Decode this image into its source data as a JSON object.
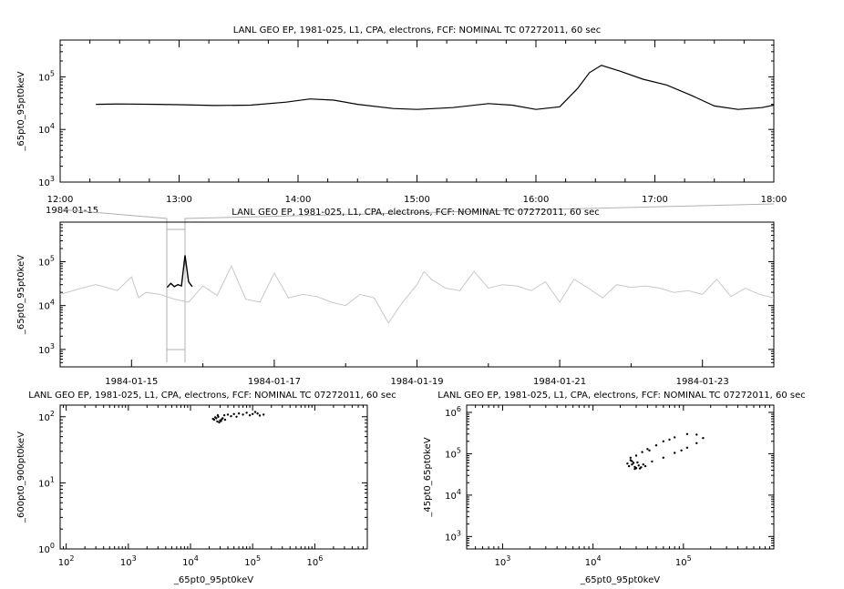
{
  "chart_data": [
    {
      "type": "line",
      "title": "LANL GEO EP, 1981-025, L1, CPA, electrons, FCF: NOMINAL TC 07272011, 60 sec",
      "ylabel": "_65pt0_95pt0keV",
      "xlabel": "",
      "date_label": "1984-01-15",
      "yscale": "log",
      "ylim": [
        1000,
        500000
      ],
      "yticks": [
        {
          "exp": "3",
          "v": 1000
        },
        {
          "exp": "4",
          "v": 10000
        },
        {
          "exp": "5",
          "v": 100000
        }
      ],
      "xlim": [
        12,
        18
      ],
      "xticks": [
        "12:00",
        "13:00",
        "14:00",
        "15:00",
        "16:00",
        "17:00",
        "18:00"
      ],
      "series": [
        {
          "x": [
            12.3,
            12.5,
            12.8,
            13.0,
            13.3,
            13.6,
            13.9,
            14.1,
            14.3,
            14.5,
            14.8,
            15.0,
            15.3,
            15.6,
            15.8,
            16.0,
            16.2,
            16.35,
            16.45,
            16.55,
            16.7,
            16.9,
            17.1,
            17.3,
            17.5,
            17.7,
            17.9,
            18.0
          ],
          "y": [
            30000,
            30500,
            30000,
            29500,
            28500,
            29000,
            33000,
            38000,
            36000,
            30000,
            25000,
            24000,
            26000,
            31000,
            29000,
            24000,
            27000,
            60000,
            120000,
            165000,
            130000,
            90000,
            70000,
            45000,
            28000,
            24000,
            26000,
            29000
          ]
        }
      ]
    },
    {
      "type": "line",
      "title": "LANL GEO EP, 1981-025, L1, CPA, electrons, FCF: NOMINAL TC 07272011, 60 sec",
      "ylabel": "_65pt0_95pt0keV",
      "xlabel": "",
      "yscale": "log",
      "ylim": [
        400,
        800000
      ],
      "yticks": [
        {
          "exp": "3",
          "v": 1000
        },
        {
          "exp": "4",
          "v": 10000
        },
        {
          "exp": "5",
          "v": 100000
        }
      ],
      "xlim": [
        0,
        10
      ],
      "xticks": [
        "1984-01-15",
        "1984-01-17",
        "1984-01-19",
        "1984-01-21",
        "1984-01-23"
      ],
      "series": [
        {
          "color": "#c8c8c8",
          "x": [
            0,
            0.3,
            0.5,
            0.8,
            1.0,
            1.1,
            1.2,
            1.4,
            1.6,
            1.8,
            2.0,
            2.2,
            2.4,
            2.6,
            2.8,
            3.0,
            3.2,
            3.4,
            3.6,
            3.8,
            4.0,
            4.2,
            4.4,
            4.6,
            4.8,
            5.0,
            5.1,
            5.2,
            5.4,
            5.6,
            5.8,
            6.0,
            6.2,
            6.4,
            6.6,
            6.8,
            7.0,
            7.2,
            7.4,
            7.6,
            7.8,
            8.0,
            8.2,
            8.4,
            8.6,
            8.8,
            9.0,
            9.2,
            9.4,
            9.6,
            9.8,
            10.0
          ],
          "y": [
            18000,
            25000,
            30000,
            22000,
            45000,
            15000,
            20000,
            18000,
            14000,
            12000,
            28000,
            17000,
            80000,
            14000,
            12000,
            55000,
            15000,
            18000,
            16000,
            12000,
            10000,
            18000,
            15000,
            4000,
            12000,
            30000,
            60000,
            40000,
            25000,
            22000,
            60000,
            25000,
            30000,
            28000,
            22000,
            35000,
            12000,
            40000,
            25000,
            15000,
            30000,
            26000,
            28000,
            25000,
            20000,
            22000,
            18000,
            40000,
            16000,
            25000,
            18000,
            15000
          ]
        },
        {
          "color": "#000000",
          "x": [
            1.5,
            1.55,
            1.6,
            1.65,
            1.7,
            1.75,
            1.8,
            1.85
          ],
          "y": [
            26000,
            32000,
            27000,
            30000,
            28000,
            140000,
            35000,
            27000
          ]
        }
      ]
    },
    {
      "type": "scatter",
      "title": "LANL GEO EP, 1981-025, L1, CPA, electrons, FCF: NOMINAL TC 07272011, 60 sec",
      "xlabel": "_65pt0_95pt0keV",
      "ylabel": "_600pt0_900pt0keV",
      "xscale": "log",
      "yscale": "log",
      "xlim": [
        80,
        7000000
      ],
      "ylim": [
        1,
        150
      ],
      "xticks": [
        {
          "exp": "2",
          "v": 100
        },
        {
          "exp": "3",
          "v": 1000
        },
        {
          "exp": "4",
          "v": 10000
        },
        {
          "exp": "5",
          "v": 100000
        },
        {
          "exp": "6",
          "v": 1000000
        }
      ],
      "yticks": [
        {
          "exp": "0",
          "v": 1
        },
        {
          "exp": "1",
          "v": 10
        },
        {
          "exp": "2",
          "v": 100
        }
      ],
      "points": [
        [
          24000,
          90
        ],
        [
          26000,
          95
        ],
        [
          28000,
          100
        ],
        [
          30000,
          88
        ],
        [
          32000,
          92
        ],
        [
          27000,
          85
        ],
        [
          25000,
          98
        ],
        [
          35000,
          105
        ],
        [
          40000,
          108
        ],
        [
          50000,
          110
        ],
        [
          60000,
          112
        ],
        [
          70000,
          108
        ],
        [
          80000,
          115
        ],
        [
          100000,
          110
        ],
        [
          120000,
          112
        ],
        [
          150000,
          108
        ],
        [
          45000,
          102
        ],
        [
          55000,
          100
        ],
        [
          90000,
          105
        ],
        [
          33000,
          95
        ],
        [
          29000,
          82
        ],
        [
          31000,
          86
        ],
        [
          23000,
          93
        ],
        [
          27500,
          105
        ],
        [
          36000,
          90
        ],
        [
          110000,
          118
        ],
        [
          130000,
          104
        ]
      ]
    },
    {
      "type": "scatter",
      "title": "LANL GEO EP, 1981-025, L1, CPA, electrons, FCF: NOMINAL TC 07272011, 60 sec",
      "xlabel": "_65pt0_95pt0keV",
      "ylabel": "_45pt0_65pt0keV",
      "xscale": "log",
      "yscale": "log",
      "xlim": [
        400,
        1000000
      ],
      "ylim": [
        500,
        1500000
      ],
      "xticks": [
        {
          "exp": "3",
          "v": 1000
        },
        {
          "exp": "4",
          "v": 10000
        },
        {
          "exp": "5",
          "v": 100000
        }
      ],
      "yticks": [
        {
          "exp": "3",
          "v": 1000
        },
        {
          "exp": "4",
          "v": 10000
        },
        {
          "exp": "5",
          "v": 100000
        },
        {
          "exp": "6",
          "v": 1000000
        }
      ],
      "points": [
        [
          25000,
          50000
        ],
        [
          27000,
          55000
        ],
        [
          30000,
          45000
        ],
        [
          28000,
          60000
        ],
        [
          32000,
          52000
        ],
        [
          26000,
          70000
        ],
        [
          30000,
          90000
        ],
        [
          35000,
          110000
        ],
        [
          40000,
          130000
        ],
        [
          50000,
          160000
        ],
        [
          60000,
          200000
        ],
        [
          80000,
          250000
        ],
        [
          110000,
          300000
        ],
        [
          140000,
          290000
        ],
        [
          165000,
          240000
        ],
        [
          140000,
          180000
        ],
        [
          110000,
          140000
        ],
        [
          80000,
          105000
        ],
        [
          60000,
          80000
        ],
        [
          45000,
          65000
        ],
        [
          36000,
          55000
        ],
        [
          29000,
          48000
        ],
        [
          24000,
          58000
        ],
        [
          26000,
          80000
        ],
        [
          33000,
          44000
        ],
        [
          38000,
          50000
        ],
        [
          31000,
          62000
        ],
        [
          34000,
          47000
        ],
        [
          29000,
          43000
        ],
        [
          27000,
          66000
        ],
        [
          42000,
          120000
        ],
        [
          70000,
          220000
        ],
        [
          95000,
          120000
        ]
      ]
    }
  ]
}
